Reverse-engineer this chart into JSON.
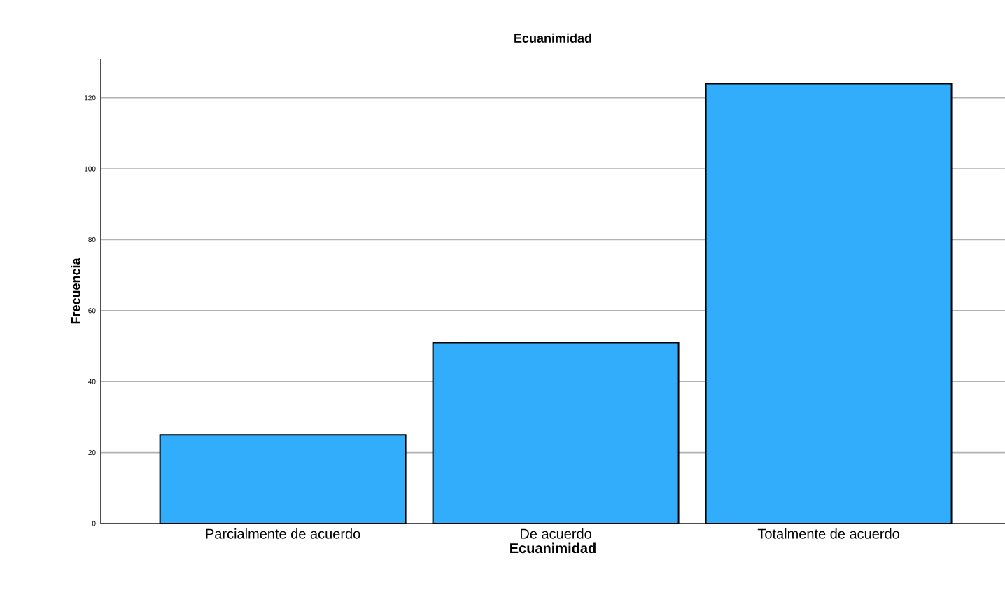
{
  "chart_data": {
    "type": "bar",
    "title": "Ecuanimidad",
    "xlabel": "Ecuanimidad",
    "ylabel": "Frecuencia",
    "categories": [
      "Parcialmente de acuerdo",
      "De acuerdo",
      "Totalmente de acuerdo"
    ],
    "values": [
      25,
      51,
      124
    ],
    "color": "#31adfc",
    "ylim": [
      0,
      131
    ],
    "yticks": [
      0,
      20,
      40,
      60,
      80,
      100,
      120
    ],
    "grid": "y"
  }
}
